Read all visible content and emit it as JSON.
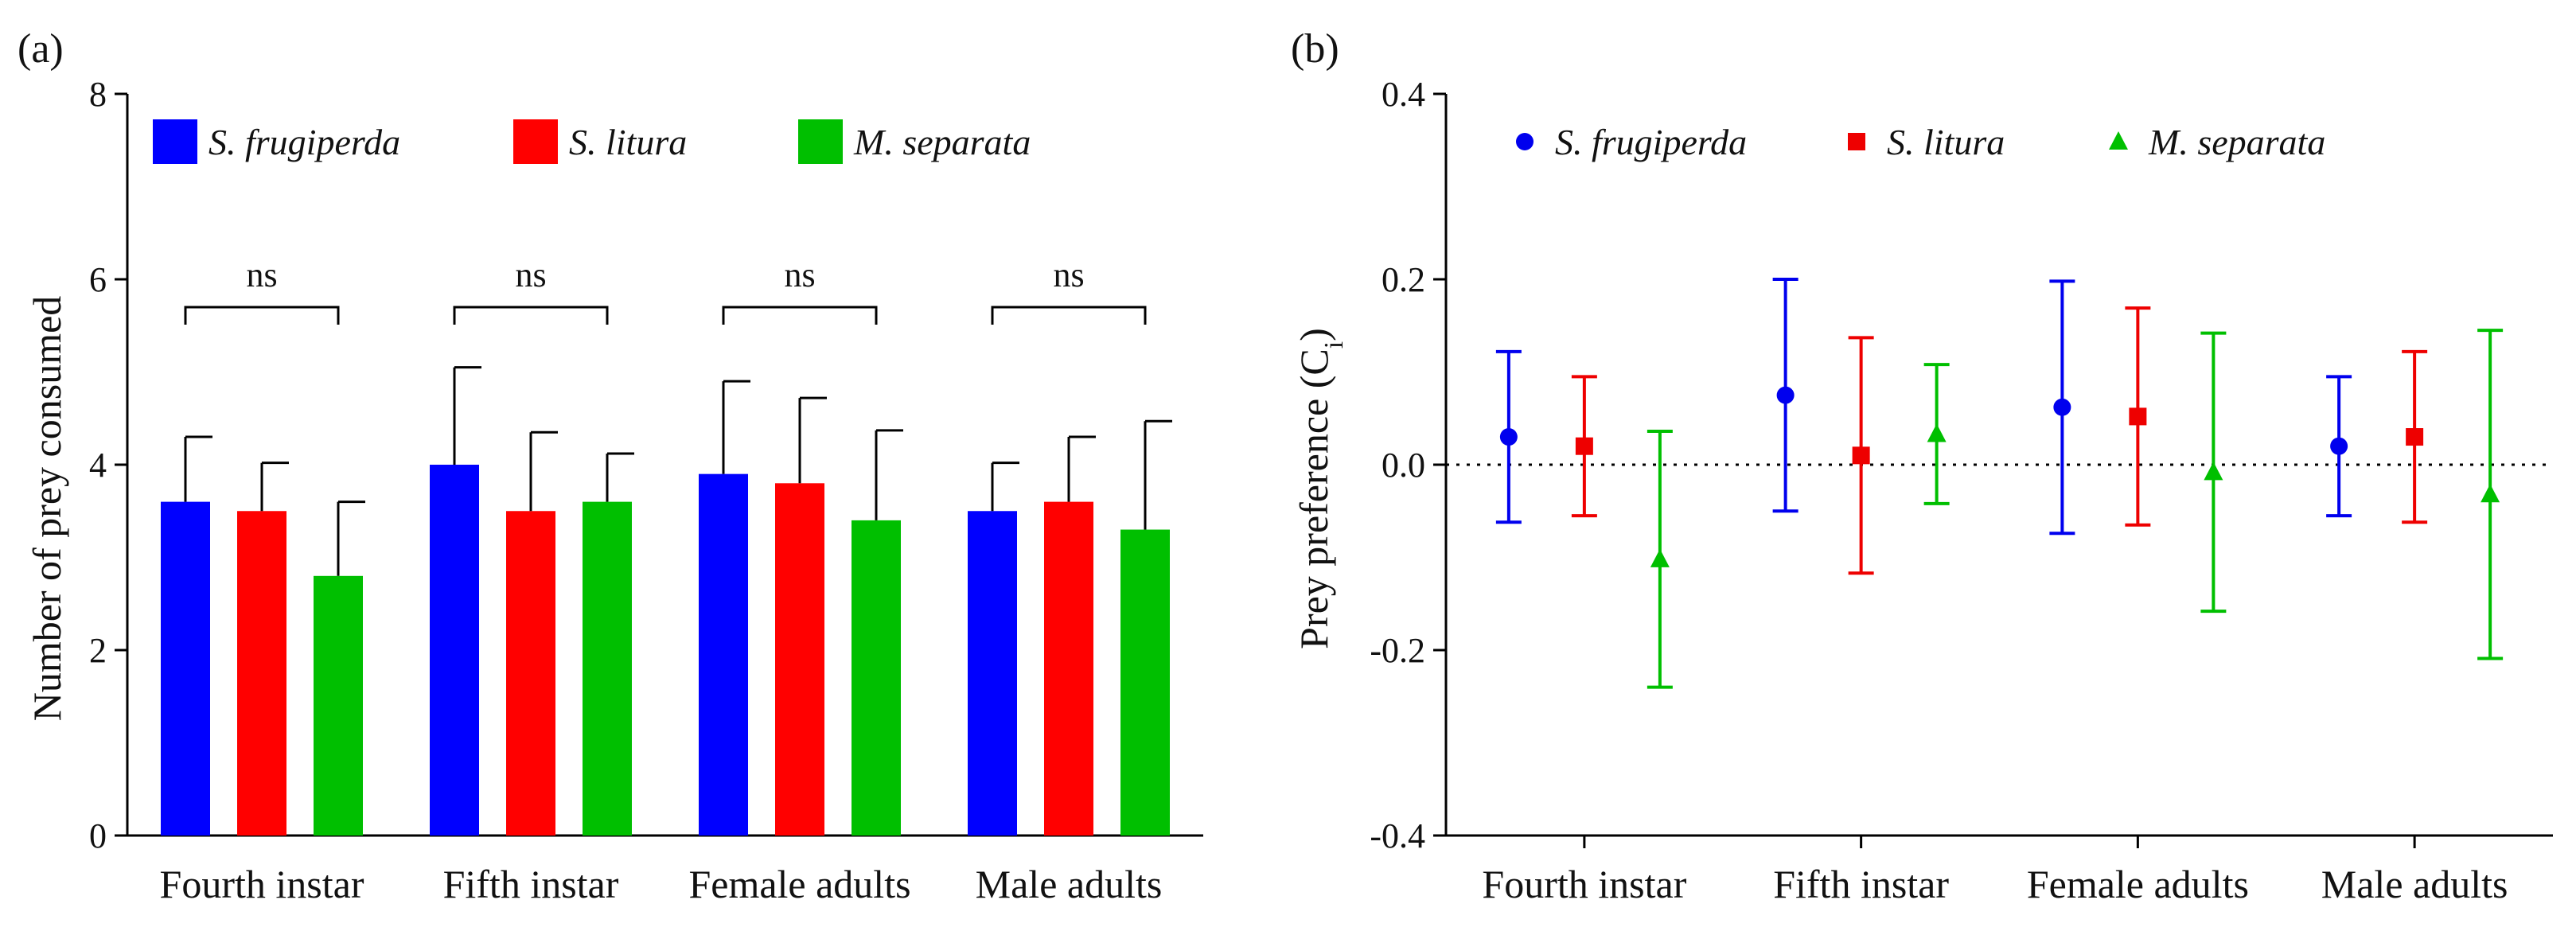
{
  "chart_data": [
    {
      "panel": "(a)",
      "type": "bar",
      "ylabel": "Number of prey consumed",
      "xlabel": "",
      "ylim": [
        0,
        8
      ],
      "yticks": [
        "0",
        "2",
        "4",
        "6",
        "8"
      ],
      "categories": [
        "Fourth instar",
        "Fifth instar",
        "Female adults",
        "Male adults"
      ],
      "series": [
        {
          "name": "S. frugiperda",
          "color": "#0000ff",
          "values": [
            3.6,
            4.0,
            3.9,
            3.5
          ],
          "errors": [
            0.7,
            1.05,
            1.0,
            0.52
          ]
        },
        {
          "name": "S. litura",
          "color": "#ff0000",
          "values": [
            3.5,
            3.5,
            3.8,
            3.6
          ],
          "errors": [
            0.52,
            0.85,
            0.92,
            0.7
          ]
        },
        {
          "name": "M. separata",
          "color": "#00bf00",
          "values": [
            2.8,
            3.6,
            3.4,
            3.3
          ],
          "errors": [
            0.8,
            0.52,
            0.97,
            1.17
          ]
        }
      ],
      "annotations": [
        "ns",
        "ns",
        "ns",
        "ns"
      ],
      "legend": "top"
    },
    {
      "panel": "(b)",
      "type": "scatter",
      "ylabel": "Prey preference (C",
      "ylabel_sub": "i",
      "ylabel_close": ")",
      "xlabel": "",
      "ylim": [
        -0.4,
        0.4
      ],
      "yticks": [
        "-0.4",
        "-0.2",
        "0.0",
        "0.2",
        "0.4"
      ],
      "categories": [
        "Fourth instar",
        "Fifth instar",
        "Female adults",
        "Male adults"
      ],
      "reference_line": 0.0,
      "series": [
        {
          "name": "S. frugiperda",
          "marker": "circle",
          "color": "#0000ee",
          "values": [
            0.03,
            0.075,
            0.062,
            0.02
          ],
          "errors": [
            0.092,
            0.125,
            0.136,
            0.075
          ]
        },
        {
          "name": "S. litura",
          "marker": "square",
          "color": "#ee0000",
          "values": [
            0.02,
            0.01,
            0.052,
            0.03
          ],
          "errors": [
            0.075,
            0.127,
            0.117,
            0.092
          ]
        },
        {
          "name": "M. separata",
          "marker": "triangle",
          "color": "#00bf00",
          "values": [
            -0.102,
            0.033,
            -0.008,
            -0.032
          ],
          "errors": [
            0.138,
            0.075,
            0.15,
            0.177
          ]
        }
      ],
      "legend": "top"
    }
  ]
}
